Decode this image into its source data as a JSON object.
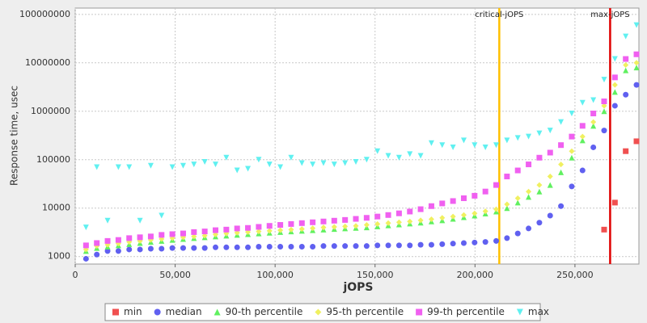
{
  "chart_data": {
    "type": "scatter",
    "x_label": "jOPS",
    "y_label": "Response time, usec",
    "x": [
      5400,
      10800,
      16200,
      21600,
      27000,
      32400,
      37800,
      43200,
      48600,
      54000,
      59400,
      64800,
      70200,
      75600,
      81000,
      86400,
      91800,
      97200,
      102600,
      108000,
      113400,
      118800,
      124200,
      129600,
      135000,
      140400,
      145800,
      151200,
      156600,
      162000,
      167400,
      172800,
      178200,
      183600,
      189000,
      194400,
      199800,
      205200,
      210600,
      216000,
      221400,
      226800,
      232200,
      237600,
      243000,
      248400,
      253800,
      259200,
      264600,
      270000,
      275400,
      280800
    ],
    "xlim": [
      0,
      282000
    ],
    "xticks": [
      0,
      {
        "value": 50000,
        "label": "50,000"
      },
      {
        "value": 100000,
        "label": "100,000"
      },
      {
        "value": 150000,
        "label": "150,000"
      },
      {
        "value": 200000,
        "label": "200,000"
      },
      {
        "value": 250000,
        "label": "250,000"
      }
    ],
    "ylim": [
      700,
      135000000
    ],
    "log_y": true,
    "yticks": [
      1000,
      10000,
      100000,
      1000000,
      10000000,
      100000000
    ],
    "grid": true,
    "legend": "bottom",
    "vlines": [
      {
        "label": "critical-jOPS",
        "value": 212150,
        "color": "#ffc000"
      },
      {
        "label": "max-jOPS",
        "value": 267600,
        "color": "#e00000"
      }
    ],
    "series": [
      {
        "name": "min",
        "color": "#f05050",
        "marker": "square",
        "values": [
          null,
          null,
          null,
          null,
          null,
          null,
          null,
          null,
          null,
          null,
          null,
          null,
          null,
          null,
          null,
          null,
          null,
          null,
          null,
          null,
          null,
          null,
          null,
          null,
          null,
          null,
          null,
          null,
          null,
          null,
          null,
          null,
          null,
          null,
          null,
          null,
          null,
          null,
          null,
          null,
          null,
          null,
          null,
          null,
          null,
          null,
          null,
          null,
          3600,
          13000,
          150000,
          240000
        ]
      },
      {
        "name": "median",
        "color": "#6060f0",
        "marker": "circle",
        "values": [
          900,
          1100,
          1300,
          1300,
          1400,
          1400,
          1450,
          1450,
          1500,
          1500,
          1500,
          1500,
          1550,
          1550,
          1550,
          1550,
          1600,
          1600,
          1600,
          1600,
          1600,
          1600,
          1650,
          1650,
          1650,
          1650,
          1650,
          1700,
          1700,
          1700,
          1700,
          1750,
          1750,
          1800,
          1850,
          1900,
          1950,
          2000,
          2100,
          2400,
          3000,
          3800,
          5000,
          7000,
          11000,
          28000,
          60000,
          180000,
          400000,
          1300000,
          2200000,
          3500000
        ]
      },
      {
        "name": "90-th percentile",
        "color": "#60f060",
        "marker": "triangle-up",
        "values": [
          1300,
          1500,
          1600,
          1700,
          1800,
          1900,
          2000,
          2100,
          2200,
          2300,
          2400,
          2500,
          2600,
          2700,
          2800,
          2900,
          3000,
          3100,
          3200,
          3300,
          3400,
          3500,
          3600,
          3700,
          3800,
          3900,
          4000,
          4200,
          4400,
          4600,
          4800,
          5000,
          5300,
          5600,
          6000,
          6500,
          7000,
          7700,
          8500,
          10000,
          13000,
          17000,
          22000,
          30000,
          55000,
          110000,
          250000,
          500000,
          1000000,
          2500000,
          7000000,
          8000000
        ]
      },
      {
        "name": "95-th percentile",
        "color": "#f0f060",
        "marker": "diamond",
        "values": [
          1400,
          1650,
          1750,
          1850,
          2000,
          2100,
          2200,
          2300,
          2400,
          2500,
          2600,
          2700,
          2850,
          3000,
          3100,
          3200,
          3300,
          3400,
          3500,
          3600,
          3700,
          3850,
          4000,
          4100,
          4200,
          4300,
          4500,
          4700,
          4900,
          5100,
          5300,
          5600,
          5900,
          6300,
          6700,
          7200,
          7800,
          8600,
          9500,
          12000,
          16000,
          22000,
          30000,
          45000,
          80000,
          150000,
          300000,
          600000,
          1300000,
          3500000,
          9000000,
          10000000
        ]
      },
      {
        "name": "99-th percentile",
        "color": "#f060f0",
        "marker": "square",
        "values": [
          1700,
          1900,
          2100,
          2200,
          2400,
          2500,
          2600,
          2800,
          2900,
          3000,
          3200,
          3300,
          3500,
          3600,
          3800,
          3900,
          4100,
          4300,
          4500,
          4700,
          4900,
          5100,
          5300,
          5500,
          5700,
          6000,
          6300,
          6700,
          7200,
          7800,
          8500,
          9500,
          11000,
          12500,
          14000,
          16000,
          18000,
          22000,
          30000,
          45000,
          60000,
          80000,
          110000,
          140000,
          200000,
          300000,
          500000,
          900000,
          1600000,
          5000000,
          12000000,
          15000000
        ]
      },
      {
        "name": "max",
        "color": "#60f0f0",
        "marker": "triangle-down",
        "values": [
          4000,
          70000,
          5500,
          70000,
          70000,
          5500,
          75000,
          7000,
          70000,
          75000,
          80000,
          90000,
          80000,
          110000,
          60000,
          65000,
          100000,
          80000,
          70000,
          110000,
          85000,
          80000,
          85000,
          80000,
          85000,
          90000,
          100000,
          150000,
          120000,
          110000,
          130000,
          120000,
          220000,
          200000,
          180000,
          250000,
          200000,
          180000,
          200000,
          250000,
          280000,
          300000,
          350000,
          400000,
          600000,
          900000,
          1500000,
          1700000,
          4500000,
          12000000,
          35000000,
          60000000
        ]
      }
    ]
  }
}
